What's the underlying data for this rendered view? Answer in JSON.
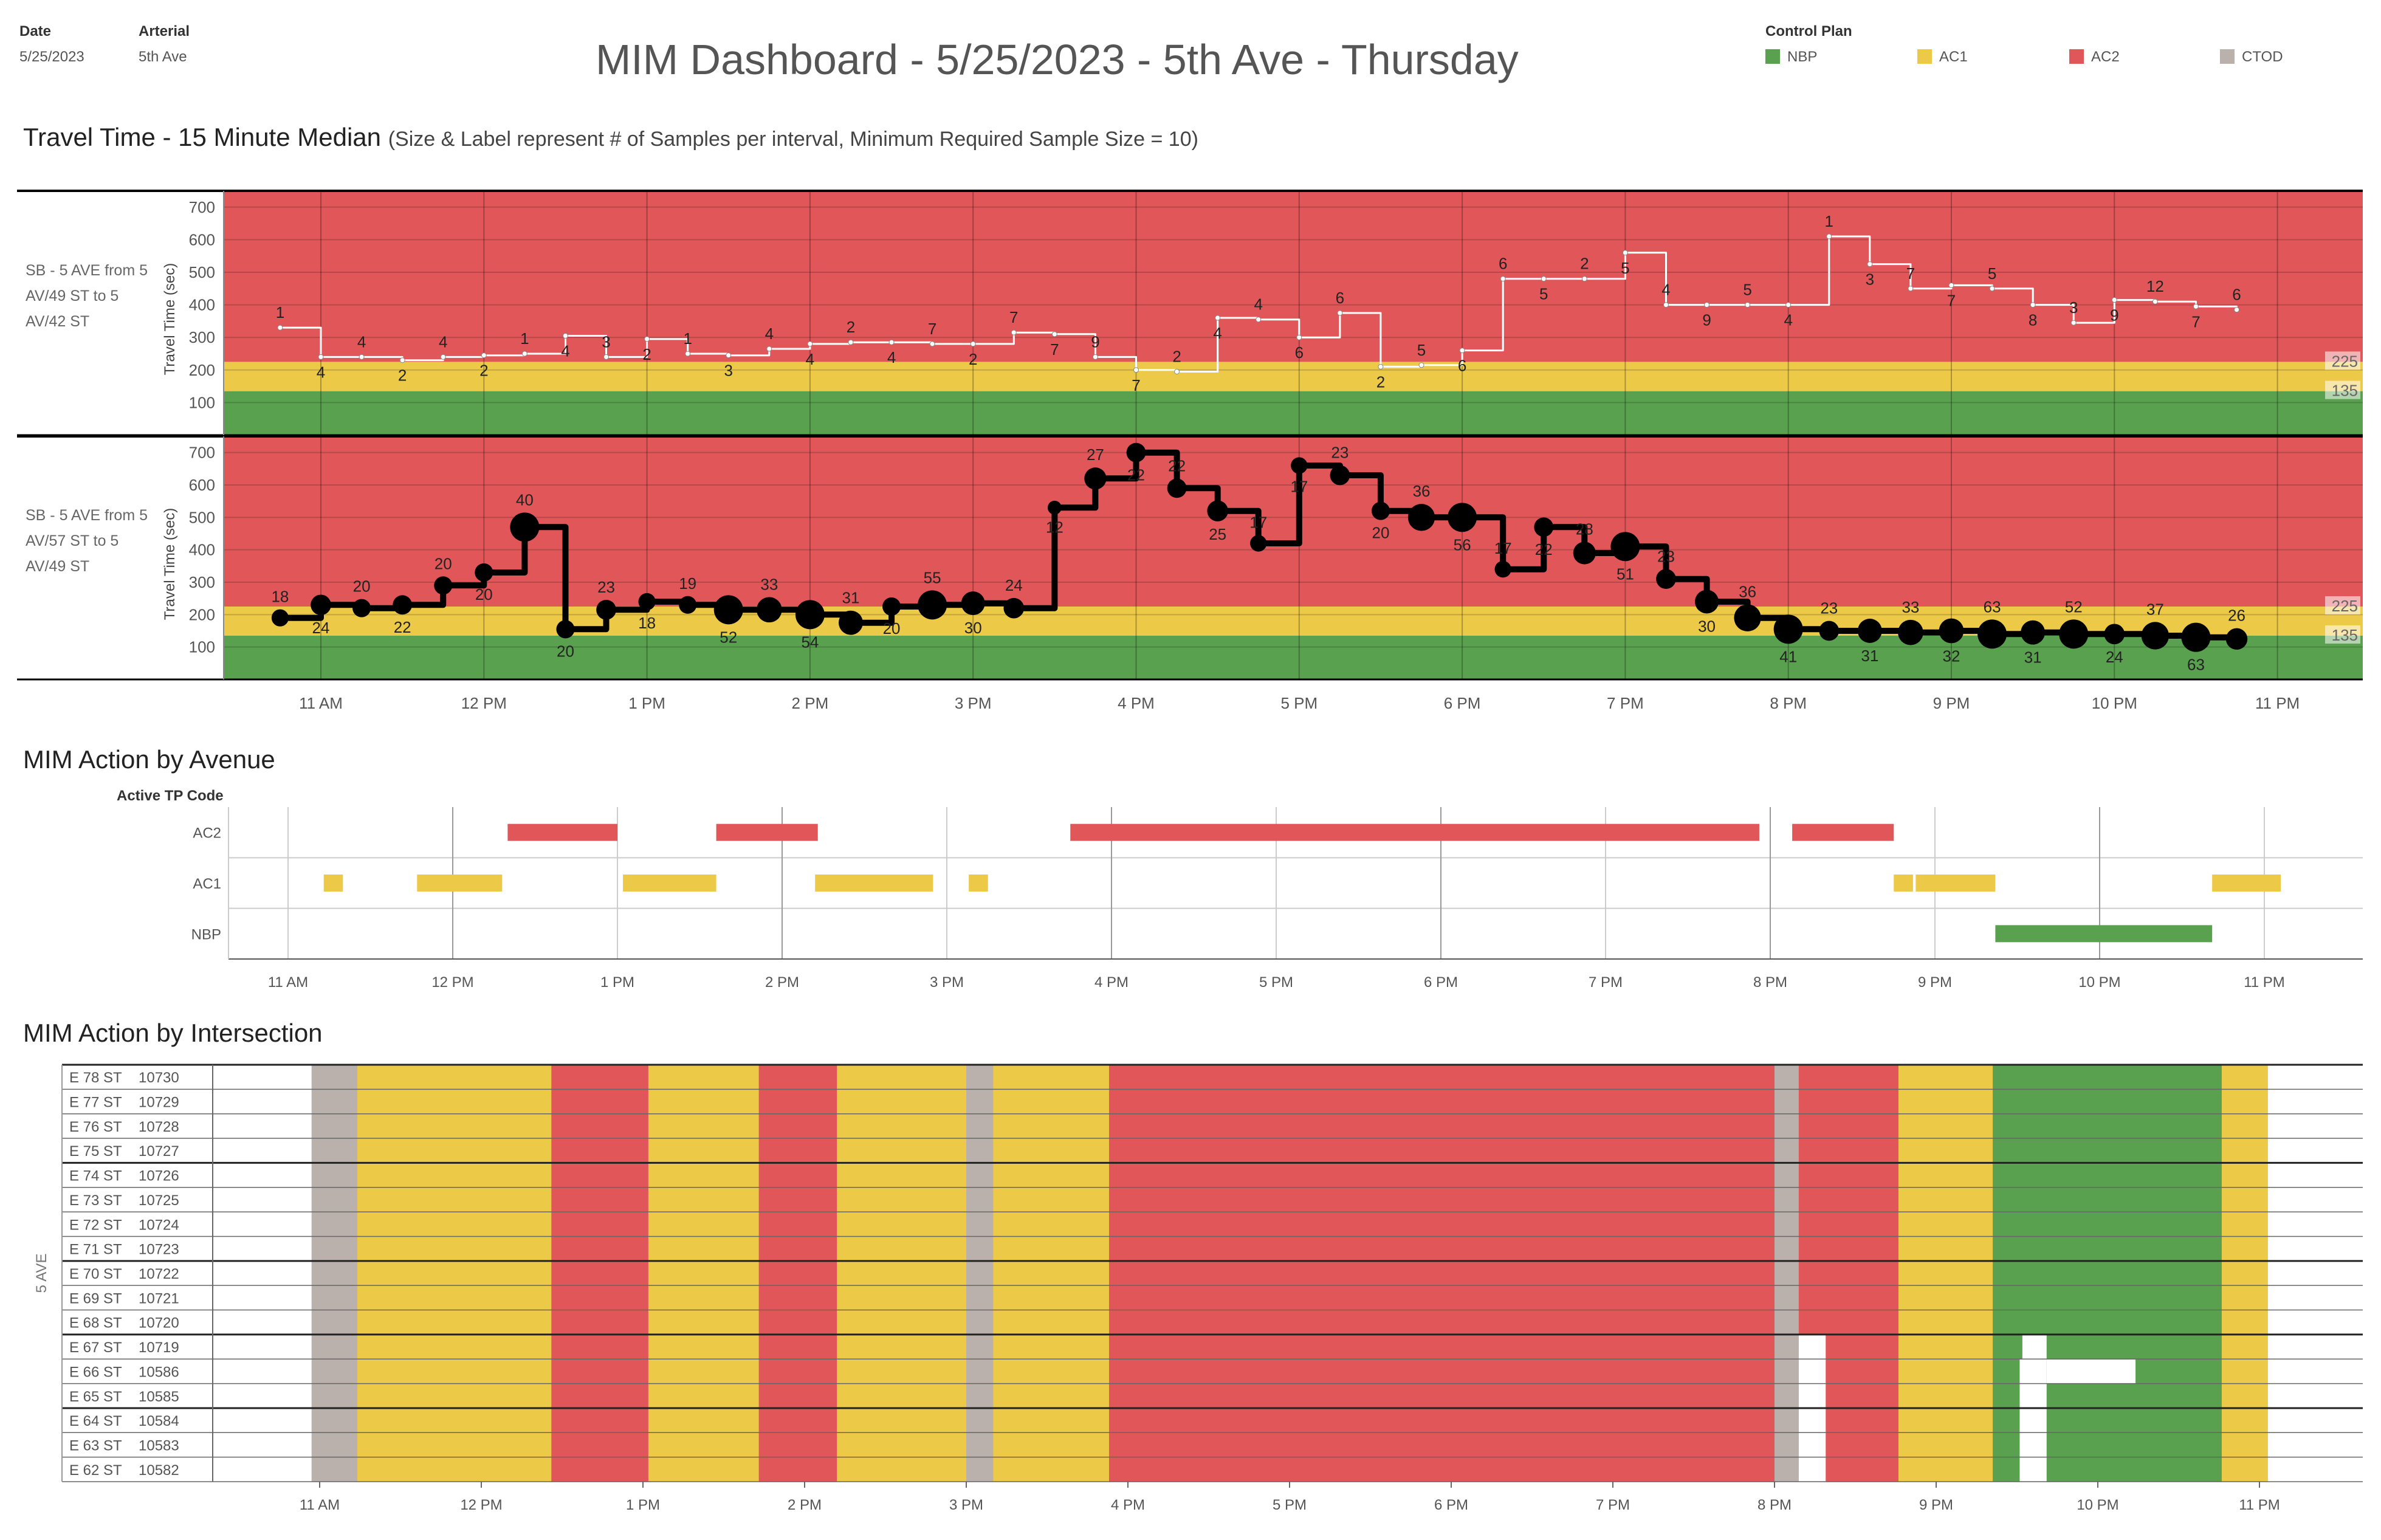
{
  "header": {
    "date_label": "Date",
    "date_value": "5/25/2023",
    "arterial_label": "Arterial",
    "arterial_value": "5th Ave",
    "title": "MIM Dashboard - 5/25/2023 - 5th Ave -  Thursday"
  },
  "legend": {
    "title": "Control Plan",
    "items": [
      {
        "label": "NBP",
        "color": "#59a14f"
      },
      {
        "label": "AC1",
        "color": "#edc948"
      },
      {
        "label": "AC2",
        "color": "#e15759"
      },
      {
        "label": "CTOD",
        "color": "#bab0ac"
      }
    ]
  },
  "colors": {
    "NBP": "#59a14f",
    "AC1": "#edc948",
    "AC2": "#e15759",
    "CTOD": "#bab0ac",
    "gap": "#ffffff"
  },
  "travel_time": {
    "title": "Travel Time - 15 Minute Median",
    "subtitle": "(Size & Label represent # of Samples per interval, Minimum Required Sample Size = 10)"
  },
  "time_ticks": [
    "11 AM",
    "12 PM",
    "1 PM",
    "2 PM",
    "3 PM",
    "4 PM",
    "5 PM",
    "6 PM",
    "7 PM",
    "8 PM",
    "9 PM",
    "10 PM",
    "11 PM"
  ],
  "chart_data": [
    {
      "type": "line",
      "title": "",
      "segment": "SB - 5 AVE from 5 AV/49 ST to 5 AV/42 ST",
      "ylabel": "Travel Time (sec)",
      "ylim": [
        0,
        750
      ],
      "yticks": [
        100,
        200,
        300,
        400,
        500,
        600,
        700
      ],
      "bands": [
        {
          "from": 0,
          "to": 135,
          "plan": "NBP"
        },
        {
          "from": 135,
          "to": 225,
          "plan": "AC1"
        },
        {
          "from": 225,
          "to": 750,
          "plan": "AC2"
        }
      ],
      "threshold_labels": [
        "225",
        "135"
      ],
      "x": [
        "10:45",
        "11:00",
        "11:15",
        "11:30",
        "11:45",
        "12:00",
        "12:15",
        "12:30",
        "12:45",
        "13:00",
        "13:15",
        "13:30",
        "13:45",
        "14:00",
        "14:15",
        "14:30",
        "14:45",
        "15:00",
        "15:15",
        "15:30",
        "15:45",
        "16:00",
        "16:15",
        "16:30",
        "16:45",
        "17:00",
        "17:15",
        "17:30",
        "17:45",
        "18:00",
        "18:15",
        "18:30",
        "18:45",
        "19:00",
        "19:15",
        "19:30",
        "19:45",
        "20:00",
        "20:15",
        "20:30",
        "20:45",
        "21:00",
        "21:15",
        "21:30",
        "21:45",
        "22:00",
        "22:15",
        "22:30",
        "22:45"
      ],
      "values": [
        330,
        240,
        240,
        230,
        240,
        245,
        250,
        305,
        240,
        295,
        250,
        245,
        265,
        280,
        285,
        285,
        280,
        280,
        315,
        310,
        240,
        200,
        195,
        360,
        355,
        300,
        375,
        210,
        215,
        260,
        480,
        480,
        480,
        560,
        400,
        400,
        400,
        400,
        610,
        525,
        450,
        460,
        450,
        400,
        345,
        415,
        410,
        395,
        385
      ],
      "samples": [
        1,
        4,
        4,
        2,
        4,
        2,
        1,
        4,
        3,
        2,
        1,
        3,
        4,
        4,
        2,
        4,
        7,
        2,
        7,
        7,
        9,
        7,
        2,
        4,
        4,
        6,
        6,
        2,
        5,
        6,
        6,
        5,
        2,
        5,
        4,
        9,
        5,
        4,
        1,
        3,
        7,
        7,
        5,
        8,
        3,
        9,
        12,
        7,
        6
      ]
    },
    {
      "type": "line",
      "title": "",
      "segment": "SB - 5 AVE from 5 AV/57 ST to 5 AV/49 ST",
      "ylabel": "Travel Time (sec)",
      "ylim": [
        0,
        750
      ],
      "yticks": [
        100,
        200,
        300,
        400,
        500,
        600,
        700
      ],
      "bands": [
        {
          "from": 0,
          "to": 135,
          "plan": "NBP"
        },
        {
          "from": 135,
          "to": 225,
          "plan": "AC1"
        },
        {
          "from": 225,
          "to": 750,
          "plan": "AC2"
        }
      ],
      "threshold_labels": [
        "225",
        "135"
      ],
      "x": [
        "10:45",
        "11:00",
        "11:15",
        "11:30",
        "11:45",
        "12:00",
        "12:15",
        "12:30",
        "12:45",
        "13:00",
        "13:15",
        "13:30",
        "13:45",
        "14:00",
        "14:15",
        "14:30",
        "14:45",
        "15:00",
        "15:15",
        "15:30",
        "15:45",
        "16:00",
        "16:15",
        "16:30",
        "16:45",
        "17:00",
        "17:15",
        "17:30",
        "17:45",
        "18:00",
        "18:15",
        "18:30",
        "18:45",
        "19:00",
        "19:15",
        "19:30",
        "19:45",
        "20:00",
        "20:15",
        "20:30",
        "20:45",
        "21:00",
        "21:15",
        "21:30",
        "21:45",
        "22:00",
        "22:15",
        "22:30",
        "22:45"
      ],
      "values": [
        190,
        230,
        220,
        230,
        290,
        330,
        470,
        155,
        215,
        240,
        230,
        215,
        215,
        200,
        175,
        225,
        230,
        235,
        220,
        530,
        620,
        700,
        590,
        520,
        420,
        660,
        630,
        520,
        500,
        500,
        340,
        470,
        390,
        410,
        310,
        240,
        190,
        155,
        150,
        150,
        145,
        150,
        140,
        145,
        140,
        140,
        135,
        130,
        125
      ],
      "samples": [
        18,
        24,
        20,
        22,
        20,
        20,
        40,
        20,
        23,
        18,
        19,
        52,
        33,
        54,
        31,
        20,
        55,
        30,
        24,
        12,
        27,
        22,
        22,
        25,
        17,
        17,
        23,
        20,
        36,
        56,
        17,
        22,
        28,
        51,
        23,
        30,
        36,
        41,
        23,
        31,
        33,
        32,
        63,
        31,
        52,
        24,
        37,
        63,
        26
      ]
    }
  ],
  "avenue": {
    "title": "MIM Action by Avenue",
    "axis_title": "Active TP Code",
    "rows": [
      "AC2",
      "AC1",
      "NBP"
    ],
    "segments": [
      {
        "row": "AC1",
        "start": "11:13",
        "end": "11:20"
      },
      {
        "row": "AC1",
        "start": "11:47",
        "end": "12:18"
      },
      {
        "row": "AC2",
        "start": "12:20",
        "end": "13:00"
      },
      {
        "row": "AC1",
        "start": "13:02",
        "end": "13:36"
      },
      {
        "row": "AC2",
        "start": "13:36",
        "end": "14:13"
      },
      {
        "row": "AC1",
        "start": "14:12",
        "end": "14:55"
      },
      {
        "row": "AC1",
        "start": "15:08",
        "end": "15:15"
      },
      {
        "row": "AC2",
        "start": "15:45",
        "end": "19:56"
      },
      {
        "row": "AC2",
        "start": "20:08",
        "end": "20:45"
      },
      {
        "row": "AC1",
        "start": "20:45",
        "end": "20:52"
      },
      {
        "row": "AC1",
        "start": "20:53",
        "end": "21:22"
      },
      {
        "row": "NBP",
        "start": "21:22",
        "end": "22:41"
      },
      {
        "row": "AC1",
        "start": "22:41",
        "end": "23:06"
      }
    ]
  },
  "intersection": {
    "title": "MIM Action by Intersection",
    "group_label": "5 AVE",
    "rows": [
      {
        "street": "E 78 ST",
        "id": "10730"
      },
      {
        "street": "E 77 ST",
        "id": "10729"
      },
      {
        "street": "E 76 ST",
        "id": "10728"
      },
      {
        "street": "E 75 ST",
        "id": "10727"
      },
      {
        "street": "E 74 ST",
        "id": "10726"
      },
      {
        "street": "E 73 ST",
        "id": "10725"
      },
      {
        "street": "E 72 ST",
        "id": "10724"
      },
      {
        "street": "E 71 ST",
        "id": "10723"
      },
      {
        "street": "E 70 ST",
        "id": "10722"
      },
      {
        "street": "E 69 ST",
        "id": "10721"
      },
      {
        "street": "E 68 ST",
        "id": "10720"
      },
      {
        "street": "E 67 ST",
        "id": "10719"
      },
      {
        "street": "E 66 ST",
        "id": "10586"
      },
      {
        "street": "E 65 ST",
        "id": "10585"
      },
      {
        "street": "E 64 ST",
        "id": "10584"
      },
      {
        "street": "E 63 ST",
        "id": "10583"
      },
      {
        "street": "E 62 ST",
        "id": "10582"
      }
    ],
    "common_segments": [
      {
        "plan": "CTOD",
        "start": "10:57",
        "end": "11:14"
      },
      {
        "plan": "AC1",
        "start": "11:14",
        "end": "12:26"
      },
      {
        "plan": "AC2",
        "start": "12:26",
        "end": "13:02"
      },
      {
        "plan": "AC1",
        "start": "13:02",
        "end": "13:43"
      },
      {
        "plan": "AC2",
        "start": "13:43",
        "end": "14:12"
      },
      {
        "plan": "AC1",
        "start": "14:12",
        "end": "15:00"
      },
      {
        "plan": "CTOD",
        "start": "15:00",
        "end": "15:10"
      },
      {
        "plan": "AC1",
        "start": "15:10",
        "end": "15:53"
      },
      {
        "plan": "AC2",
        "start": "15:53",
        "end": "20:00"
      },
      {
        "plan": "CTOD",
        "start": "20:00",
        "end": "20:09"
      },
      {
        "plan": "AC2",
        "start": "20:09",
        "end": "20:46"
      },
      {
        "plan": "AC1",
        "start": "20:46",
        "end": "21:21"
      },
      {
        "plan": "NBP",
        "start": "21:21",
        "end": "22:46"
      },
      {
        "plan": "AC1",
        "start": "22:46",
        "end": "23:03"
      }
    ],
    "row_overrides": [
      {
        "rows": [
          11,
          12,
          13,
          14,
          15,
          16
        ],
        "plan": "gap",
        "start": "20:09",
        "end": "20:19"
      },
      {
        "rows": [
          12,
          13,
          14,
          15,
          16
        ],
        "plan": "gap",
        "start": "21:31",
        "end": "21:41"
      },
      {
        "rows": [
          11
        ],
        "plan": "gap",
        "start": "21:32",
        "end": "21:41"
      },
      {
        "rows": [
          12
        ],
        "plan": "gap",
        "start": "21:41",
        "end": "22:14"
      }
    ]
  }
}
